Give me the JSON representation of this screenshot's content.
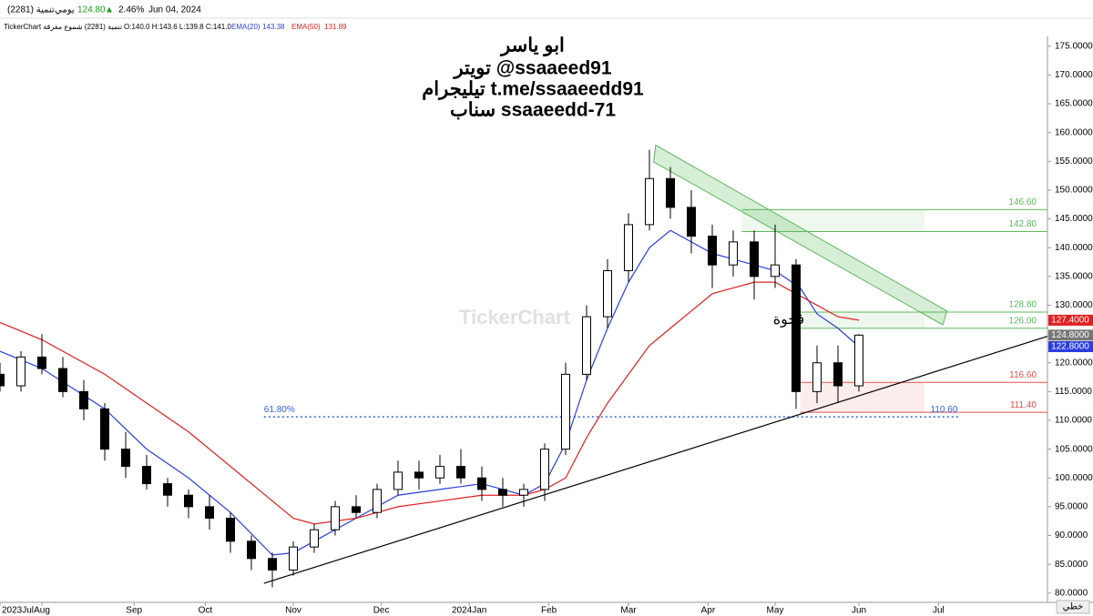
{
  "header": {
    "symbol": "تنمية (2281)",
    "period": "يومي",
    "price": "124.80",
    "arrow": "▲",
    "change": "2.46%",
    "date": "Jun 04, 2024",
    "source": "TickerChart تنمية (2281) شموع مفرقة",
    "ohlc": "O:140.0 H:143.6 L:139.8 C:141.0",
    "ema20_name": "EMA(20)",
    "ema20_value": "143.38",
    "ema50_name": "EMA(50)",
    "ema50_value": "131.89"
  },
  "notes": {
    "lines": [
      "ابو ياسر",
      "تويتر  @ssaaeed91",
      "تيليجرام t.me/ssaaeedd91",
      "سناب  ssaaeedd-71"
    ],
    "watermark": "TickerChart",
    "gap": "فجوة",
    "mode": "خطي"
  },
  "chart_data": {
    "type": "candlestick",
    "xlim": [
      0,
      250
    ],
    "ylim": [
      78.7,
      176.7
    ],
    "xticks": [
      {
        "value": 0,
        "label": "2023Jul"
      },
      {
        "value": 10,
        "label": "Aug"
      },
      {
        "value": 32,
        "label": "Sep"
      },
      {
        "value": 49,
        "label": "Oct"
      },
      {
        "value": 70,
        "label": "Nov"
      },
      {
        "value": 91,
        "label": "Dec"
      },
      {
        "value": 112,
        "label": "2024Jan"
      },
      {
        "value": 131,
        "label": "Feb"
      },
      {
        "value": 150,
        "label": "Mar"
      },
      {
        "value": 169,
        "label": "Apr"
      },
      {
        "value": 185,
        "label": "May"
      },
      {
        "value": 205,
        "label": "Jun"
      },
      {
        "value": 224,
        "label": "Jul"
      }
    ],
    "yticks": [
      {
        "value": 80,
        "label": "80.0000"
      },
      {
        "value": 85,
        "label": "85.0000"
      },
      {
        "value": 90,
        "label": "90.0000"
      },
      {
        "value": 95,
        "label": "95.0000"
      },
      {
        "value": 100,
        "label": "100.0000"
      },
      {
        "value": 105,
        "label": "105.0000"
      },
      {
        "value": 110,
        "label": "110.0000"
      },
      {
        "value": 115,
        "label": "115.0000"
      },
      {
        "value": 120,
        "label": "120.0000"
      },
      {
        "value": 125,
        "label": "125.0000"
      },
      {
        "value": 130,
        "label": "130.0000"
      },
      {
        "value": 135,
        "label": "135.0000"
      },
      {
        "value": 140,
        "label": "140.0000"
      },
      {
        "value": 145,
        "label": "145.0000"
      },
      {
        "value": 150,
        "label": "150.0000"
      },
      {
        "value": 155,
        "label": "155.0000"
      },
      {
        "value": 160,
        "label": "160.0000"
      },
      {
        "value": 165,
        "label": "165.0000"
      },
      {
        "value": 170,
        "label": "170.0000"
      },
      {
        "value": 175,
        "label": "175.0000"
      }
    ],
    "candles": {
      "x": [
        0,
        5,
        10,
        15,
        20,
        25,
        30,
        35,
        40,
        45,
        50,
        55,
        60,
        65,
        70,
        75,
        80,
        85,
        90,
        95,
        100,
        105,
        110,
        115,
        120,
        125,
        130,
        135,
        140,
        145,
        150,
        155,
        160,
        165,
        170,
        175,
        180,
        185,
        190,
        195,
        200,
        205
      ],
      "open": [
        118,
        116,
        121,
        119,
        115,
        112,
        105,
        102,
        99,
        97,
        95,
        93,
        89,
        86,
        84,
        88,
        91,
        95,
        94,
        98,
        101,
        100,
        102,
        100,
        98,
        97,
        98,
        105,
        118,
        128,
        136,
        144,
        152,
        147,
        142,
        137,
        141,
        135,
        137,
        115,
        120,
        116
      ],
      "high": [
        120,
        122,
        125,
        121,
        117,
        113,
        108,
        104,
        100,
        98,
        97,
        94,
        90,
        87,
        89,
        92,
        96,
        97,
        99,
        103,
        103,
        104,
        105,
        102,
        100,
        99,
        106,
        120,
        130,
        138,
        146,
        157,
        154,
        150,
        144,
        143,
        143,
        144,
        138,
        123,
        123,
        125
      ],
      "low": [
        115,
        115,
        118,
        114,
        110,
        103,
        100,
        98,
        95,
        93,
        91,
        87,
        84,
        81,
        83,
        87,
        90,
        93,
        93,
        97,
        98,
        99,
        99,
        96,
        95,
        95,
        96,
        104,
        117,
        126,
        134,
        143,
        145,
        139,
        133,
        135,
        131,
        133,
        112,
        113,
        113,
        115
      ],
      "close": [
        116,
        121,
        119,
        115,
        112,
        105,
        102,
        99,
        97,
        95,
        93,
        89,
        86,
        84,
        88,
        91,
        95,
        94,
        98,
        101,
        100,
        102,
        100,
        98,
        97,
        98,
        105,
        118,
        128,
        136,
        144,
        152,
        147,
        142,
        137,
        141,
        135,
        137,
        115,
        120,
        116,
        124.8
      ],
      "up_color": "#ffffff",
      "down_color": "#000000"
    },
    "series": [
      {
        "name": "EMA(20)",
        "color": "#2a3ee0",
        "x": [
          0,
          10,
          25,
          35,
          45,
          55,
          65,
          70,
          75,
          85,
          95,
          105,
          115,
          125,
          130,
          135,
          140,
          145,
          150,
          155,
          160,
          165,
          170,
          175,
          180,
          185,
          191,
          195,
          200,
          205
        ],
        "values": [
          122,
          119,
          112,
          105,
          100,
          94,
          86.6,
          87,
          89,
          93,
          97,
          98,
          99,
          97,
          99,
          106,
          117,
          126,
          134,
          140,
          143,
          141,
          139,
          138,
          137,
          136,
          133,
          128.5,
          126,
          122.8
        ]
      },
      {
        "name": "EMA(50)",
        "color": "#e02020",
        "x": [
          0,
          10,
          25,
          35,
          45,
          55,
          65,
          70,
          75,
          85,
          95,
          105,
          115,
          125,
          130,
          135,
          140,
          145,
          150,
          155,
          160,
          165,
          170,
          175,
          180,
          185,
          190,
          195,
          200,
          205
        ],
        "values": [
          127,
          124,
          118,
          113,
          108,
          102,
          96,
          93,
          92,
          93,
          95,
          96,
          97,
          97,
          98,
          100,
          107,
          113,
          118,
          123,
          126,
          129,
          132,
          133,
          134,
          134,
          132,
          130,
          128,
          127.4
        ]
      }
    ],
    "trendline": {
      "x": [
        63,
        250
      ],
      "y": [
        81.7,
        124.6
      ],
      "color": "#000000"
    },
    "channel": {
      "x": [
        156.5,
        226,
        225,
        156
      ],
      "y": [
        157.8,
        129,
        126.6,
        154.9
      ],
      "color": "#5cb85c"
    },
    "levels": [
      {
        "value": 146.6,
        "label": "146.60",
        "from": 177,
        "color": "#5cb85c"
      },
      {
        "value": 142.8,
        "label": "142.80",
        "from": 177,
        "color": "#5cb85c"
      },
      {
        "value": 128.8,
        "label": "128.80",
        "from": 189,
        "color": "#5cb85c"
      },
      {
        "value": 126,
        "label": "126.00",
        "from": 189,
        "color": "#5cb85c"
      },
      {
        "value": 116.6,
        "label": "116.60",
        "from": 191,
        "color": "#e05050"
      },
      {
        "value": 111.4,
        "label": "111.40",
        "from": 191,
        "color": "#e05050"
      }
    ],
    "fib": {
      "value": 110.6,
      "label": "110.60",
      "ratio": "61.80%",
      "from": 63,
      "to": 229,
      "color": "#3060e0"
    },
    "price_tags": [
      {
        "value": 127.4,
        "label": "127.4000",
        "color": "#e02020"
      },
      {
        "value": 124.8,
        "label": "124.8000",
        "color": "#777777"
      },
      {
        "value": 122.8,
        "label": "122.8000",
        "color": "#2a3ee0"
      }
    ]
  }
}
